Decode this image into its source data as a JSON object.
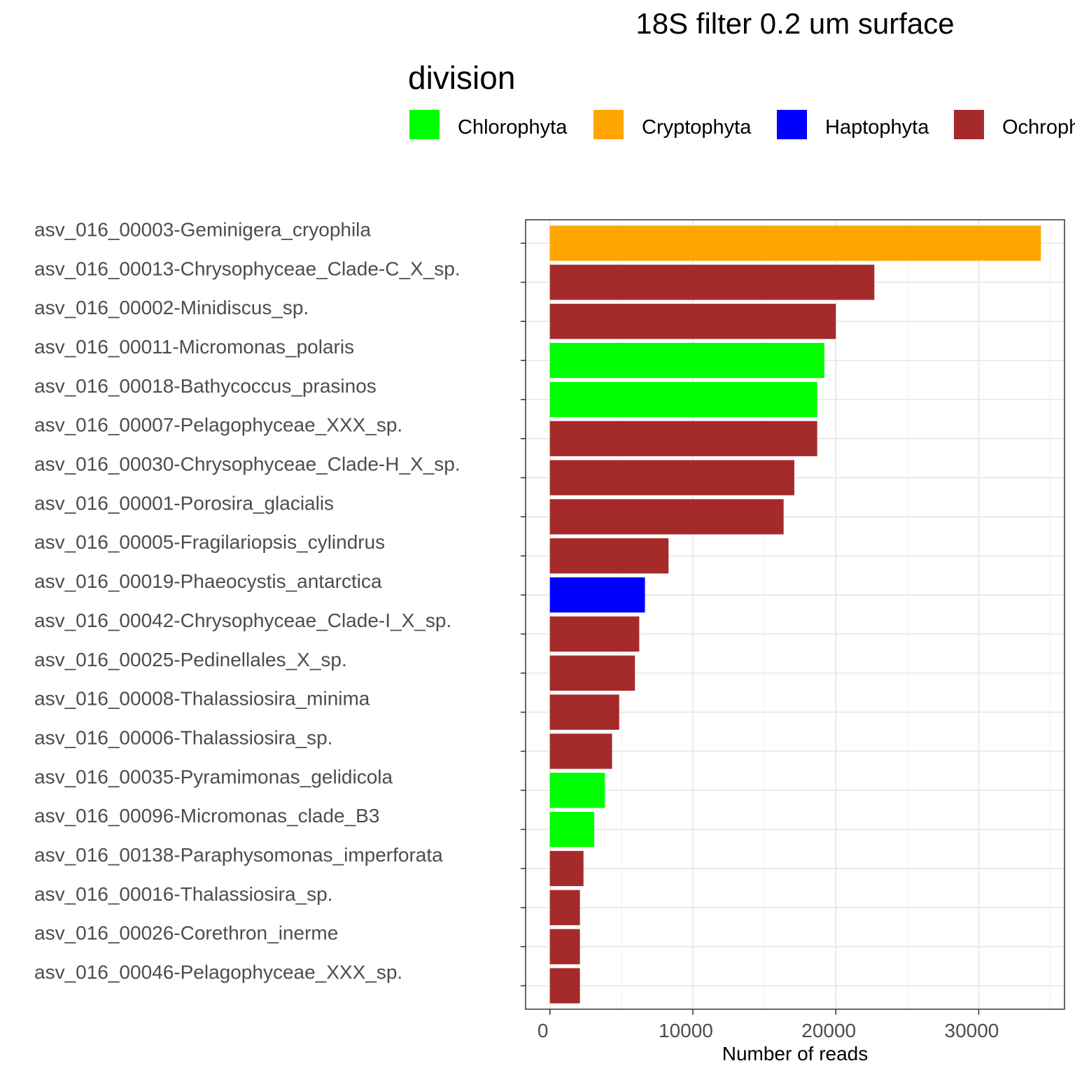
{
  "chart_data": {
    "type": "bar",
    "orientation": "horizontal",
    "title": "18S filter 0.2 um surface",
    "xlabel": "Number of reads",
    "ylabel": "",
    "xlim": [
      -1700,
      36000
    ],
    "xticks": [
      0,
      10000,
      20000,
      30000
    ],
    "grid": true,
    "legend": {
      "title": "division",
      "position": "top",
      "entries": [
        {
          "name": "Chlorophyta",
          "color": "#00ff00"
        },
        {
          "name": "Cryptophyta",
          "color": "#ffa500"
        },
        {
          "name": "Haptophyta",
          "color": "#0000ff"
        },
        {
          "name": "Ochrophyta",
          "color": "#a52a2a"
        }
      ]
    },
    "categories": [
      "asv_016_00003-Geminigera_cryophila",
      "asv_016_00013-Chrysophyceae_Clade-C_X_sp.",
      "asv_016_00002-Minidiscus_sp.",
      "asv_016_00011-Micromonas_polaris",
      "asv_016_00018-Bathycoccus_prasinos",
      "asv_016_00007-Pelagophyceae_XXX_sp.",
      "asv_016_00030-Chrysophyceae_Clade-H_X_sp.",
      "asv_016_00001-Porosira_glacialis",
      "asv_016_00005-Fragilariopsis_cylindrus",
      "asv_016_00019-Phaeocystis_antarctica",
      "asv_016_00042-Chrysophyceae_Clade-I_X_sp.",
      "asv_016_00025-Pedinellales_X_sp.",
      "asv_016_00008-Thalassiosira_minima",
      "asv_016_00006-Thalassiosira_sp.",
      "asv_016_00035-Pyramimonas_gelidicola",
      "asv_016_00096-Micromonas_clade_B3",
      "asv_016_00138-Paraphysomonas_imperforata",
      "asv_016_00016-Thalassiosira_sp.",
      "asv_016_00026-Corethron_inerme",
      "asv_016_00046-Pelagophyceae_XXX_sp."
    ],
    "values": [
      34350,
      22700,
      20000,
      19200,
      18700,
      18700,
      17100,
      16350,
      8300,
      6650,
      6250,
      5950,
      4850,
      4350,
      3850,
      3100,
      2350,
      2100,
      2100,
      2100
    ],
    "division": [
      "Cryptophyta",
      "Ochrophyta",
      "Ochrophyta",
      "Chlorophyta",
      "Chlorophyta",
      "Ochrophyta",
      "Ochrophyta",
      "Ochrophyta",
      "Ochrophyta",
      "Haptophyta",
      "Ochrophyta",
      "Ochrophyta",
      "Ochrophyta",
      "Ochrophyta",
      "Chlorophyta",
      "Chlorophyta",
      "Ochrophyta",
      "Ochrophyta",
      "Ochrophyta",
      "Ochrophyta"
    ]
  }
}
